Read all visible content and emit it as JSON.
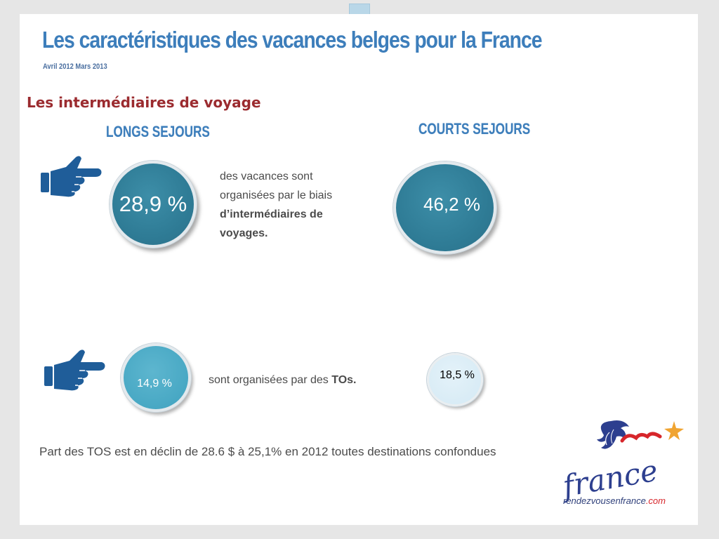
{
  "header": {
    "title": "Les caractéristiques des vacances belges pour la France",
    "subtitle": "Avril 2012  Mars 2013"
  },
  "section": {
    "heading": "Les intermédiaires de voyage"
  },
  "columns": {
    "long_stays": "LONGS SEJOURS",
    "short_stays": "COURTS SEJOURS"
  },
  "row1": {
    "long_value": "28,9 %",
    "short_value": "46,2 %",
    "text_line1": "des vacances sont",
    "text_line2": "organisées par le biais",
    "text_bold_line1": "d’intermédiaires de",
    "text_bold_line2": "voyages."
  },
  "row2": {
    "long_value": "14,9 %",
    "short_value": "18,5 %",
    "text_prefix": "sont organisées par des ",
    "text_bold": "TOs."
  },
  "footer": {
    "note": "Part des TOS est en déclin de 28.6 $ à 25,1% en 2012  toutes destinations confondues"
  },
  "logo": {
    "word": "france",
    "url_main": "rendezvousenfrance",
    "url_domain": ".com"
  },
  "colors": {
    "title_blue": "#3d7ebb",
    "heading_red": "#9b2b2f",
    "circle_dark": "#2f7c96",
    "circle_medium": "#48a8c4",
    "circle_light": "#d4e9f4",
    "hand_blue": "#1f5d99"
  },
  "icons": [
    "pointing-hand-icon",
    "france-logo"
  ]
}
